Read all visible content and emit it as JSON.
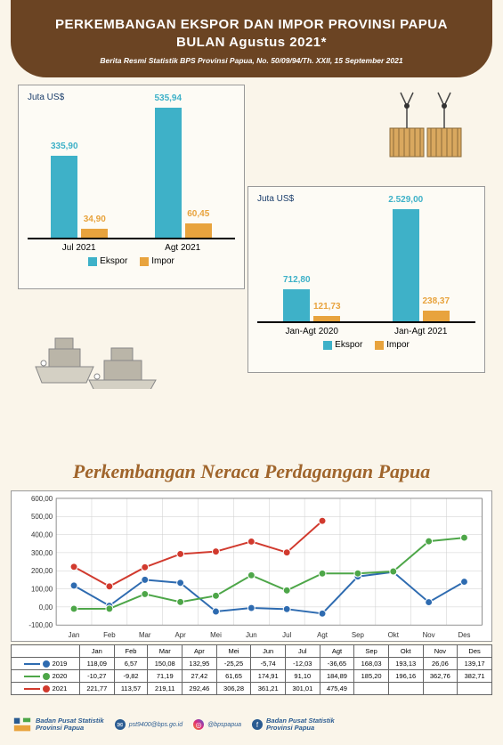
{
  "header": {
    "title_l1": "PERKEMBANGAN EKSPOR DAN IMPOR PROVINSI PAPUA",
    "title_l2": "BULAN Agustus 2021*",
    "subtitle": "Berita Resmi Statistik BPS Provinsi Papua, No. 50/09/94/Th. XXII, 15 September 2021"
  },
  "colors": {
    "ekspor": "#3eb1c8",
    "impor": "#e8a33d",
    "line2019": "#2e6bb0",
    "line2020": "#4da648",
    "line2021": "#d13a2e",
    "headerBg": "#6b4423",
    "sectionTitle": "#a0652c"
  },
  "chart_left": {
    "y_label": "Juta US$",
    "max": 550,
    "categories": [
      "Jul 2021",
      "Agt 2021"
    ],
    "series": [
      {
        "name": "Ekspor",
        "values": [
          335.9,
          535.94
        ],
        "labels": [
          "335,90",
          "535,94"
        ]
      },
      {
        "name": "Impor",
        "values": [
          34.9,
          60.45
        ],
        "labels": [
          "34,90",
          "60,45"
        ]
      }
    ],
    "legend": [
      "Ekspor",
      "Impor"
    ]
  },
  "chart_right": {
    "y_label": "Juta US$",
    "max": 2600,
    "categories": [
      "Jan-Agt 2020",
      "Jan-Agt 2021"
    ],
    "series": [
      {
        "name": "Ekspor",
        "values": [
          712.8,
          2529.0
        ],
        "labels": [
          "712,80",
          "2.529,00"
        ]
      },
      {
        "name": "Impor",
        "values": [
          121.73,
          238.37
        ],
        "labels": [
          "121,73",
          "238,37"
        ]
      }
    ],
    "legend": [
      "Ekspor",
      "Impor"
    ]
  },
  "section_title": "Perkembangan Neraca Perdagangan Papua",
  "line_chart": {
    "months": [
      "Jan",
      "Feb",
      "Mar",
      "Apr",
      "Mei",
      "Jun",
      "Jul",
      "Agt",
      "Sep",
      "Okt",
      "Nov",
      "Des"
    ],
    "ymin": -100,
    "ymax": 600,
    "ystep": 100,
    "series": [
      {
        "year": "2019",
        "color": "#2e6bb0",
        "marker": "circle",
        "values": [
          118.09,
          6.57,
          150.08,
          132.95,
          -25.25,
          -5.74,
          -12.03,
          -36.65,
          168.03,
          193.13,
          26.06,
          139.17
        ],
        "labels": [
          "118,09",
          "6,57",
          "150,08",
          "132,95",
          "-25,25",
          "-5,74",
          "-12,03",
          "-36,65",
          "168,03",
          "193,13",
          "26,06",
          "139,17"
        ]
      },
      {
        "year": "2020",
        "color": "#4da648",
        "marker": "circle",
        "values": [
          -10.27,
          -9.82,
          71.19,
          27.42,
          61.65,
          174.91,
          91.1,
          184.89,
          185.2,
          196.16,
          362.76,
          382.71
        ],
        "labels": [
          "-10,27",
          "-9,82",
          "71,19",
          "27,42",
          "61,65",
          "174,91",
          "91,10",
          "184,89",
          "185,20",
          "196,16",
          "362,76",
          "382,71"
        ]
      },
      {
        "year": "2021",
        "color": "#d13a2e",
        "marker": "circle",
        "values": [
          221.77,
          113.57,
          219.11,
          292.46,
          306.28,
          361.21,
          301.01,
          475.49
        ],
        "labels": [
          "221,77",
          "113,57",
          "219,11",
          "292,46",
          "306,28",
          "361,21",
          "301,01",
          "475,49"
        ]
      }
    ]
  },
  "footer": {
    "org_l1": "Badan Pusat Statistik",
    "org_l2": "Provinsi Papua",
    "email": "pst9400@bps.go.id",
    "instagram": "@bpspapua",
    "facebook_l1": "Badan Pusat Statistik",
    "facebook_l2": "Provinsi Papua"
  }
}
